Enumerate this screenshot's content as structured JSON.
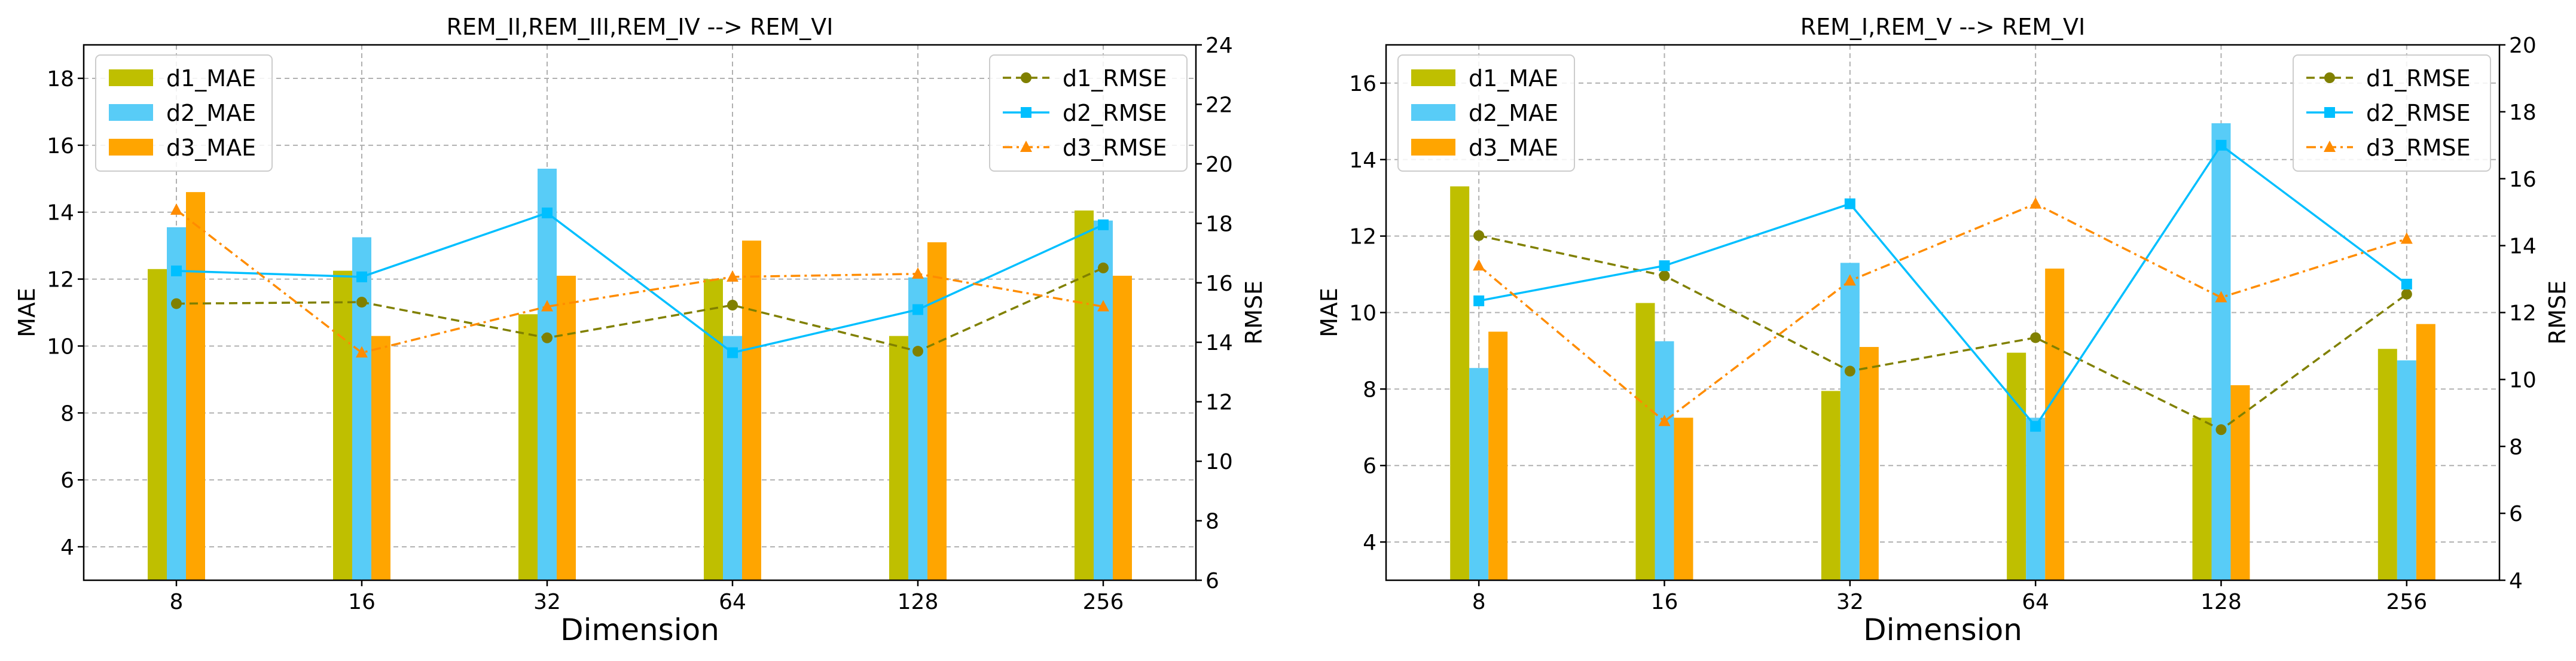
{
  "chart_data": [
    {
      "type": "bar+line",
      "title": "REM_II,REM_III,REM_IV --> REM_VI",
      "xlabel": "Dimension",
      "ylabel": "MAE",
      "y2label": "RMSE",
      "categories": [
        "8",
        "16",
        "32",
        "64",
        "128",
        "256"
      ],
      "ylim": [
        3,
        19
      ],
      "yticks": [
        4,
        6,
        8,
        10,
        12,
        14,
        16,
        18
      ],
      "y2lim": [
        6,
        24
      ],
      "y2ticks": [
        6,
        8,
        10,
        12,
        14,
        16,
        18,
        20,
        22,
        24
      ],
      "bar_series": [
        {
          "name": "d1_MAE",
          "color": "#bfbf00",
          "values": [
            12.3,
            12.25,
            10.95,
            12.0,
            10.3,
            14.05
          ]
        },
        {
          "name": "d2_MAE",
          "color": "#58ccf7",
          "values": [
            13.55,
            13.25,
            15.3,
            10.3,
            12.05,
            13.75
          ]
        },
        {
          "name": "d3_MAE",
          "color": "#ffa500",
          "values": [
            14.6,
            10.3,
            12.1,
            13.15,
            13.1,
            12.1
          ]
        }
      ],
      "line_series": [
        {
          "name": "d1_RMSE",
          "color": "#808000",
          "marker": "circle",
          "dash": "dashed",
          "values": [
            15.3,
            15.35,
            14.15,
            15.25,
            13.7,
            16.5
          ]
        },
        {
          "name": "d2_RMSE",
          "color": "#00bfff",
          "marker": "square",
          "dash": "solid",
          "values": [
            16.4,
            16.2,
            18.35,
            13.65,
            15.1,
            17.95
          ]
        },
        {
          "name": "d3_RMSE",
          "color": "#ff8c00",
          "marker": "triangle",
          "dash": "dashdot",
          "values": [
            18.45,
            13.65,
            15.2,
            16.2,
            16.3,
            15.2
          ]
        }
      ],
      "bar_legend_position": "upper left",
      "line_legend_position": "upper right",
      "grid": true
    },
    {
      "type": "bar+line",
      "title": "REM_I,REM_V --> REM_VI",
      "xlabel": "Dimension",
      "ylabel": "MAE",
      "y2label": "RMSE",
      "categories": [
        "8",
        "16",
        "32",
        "64",
        "128",
        "256"
      ],
      "ylim": [
        3,
        17
      ],
      "yticks": [
        4,
        6,
        8,
        10,
        12,
        14,
        16
      ],
      "y2lim": [
        4,
        20
      ],
      "y2ticks": [
        4,
        6,
        8,
        10,
        12,
        14,
        16,
        18,
        20
      ],
      "bar_series": [
        {
          "name": "d1_MAE",
          "color": "#bfbf00",
          "values": [
            13.3,
            10.25,
            7.95,
            8.95,
            7.25,
            9.05
          ]
        },
        {
          "name": "d2_MAE",
          "color": "#58ccf7",
          "values": [
            8.55,
            9.25,
            11.3,
            7.25,
            14.95,
            8.75
          ]
        },
        {
          "name": "d3_MAE",
          "color": "#ffa500",
          "values": [
            9.5,
            7.25,
            9.1,
            11.15,
            8.1,
            9.7
          ]
        }
      ],
      "line_series": [
        {
          "name": "d1_RMSE",
          "color": "#808000",
          "marker": "circle",
          "dash": "dashed",
          "values": [
            14.3,
            13.1,
            10.25,
            11.25,
            8.5,
            12.55
          ]
        },
        {
          "name": "d2_RMSE",
          "color": "#00bfff",
          "marker": "square",
          "dash": "solid",
          "values": [
            12.35,
            13.4,
            15.25,
            8.6,
            17.0,
            12.85
          ]
        },
        {
          "name": "d3_RMSE",
          "color": "#ff8c00",
          "marker": "triangle",
          "dash": "dashdot",
          "values": [
            13.4,
            8.75,
            12.95,
            15.25,
            12.45,
            14.2
          ]
        }
      ],
      "bar_legend_position": "upper left",
      "line_legend_position": "upper right",
      "grid": true
    }
  ]
}
